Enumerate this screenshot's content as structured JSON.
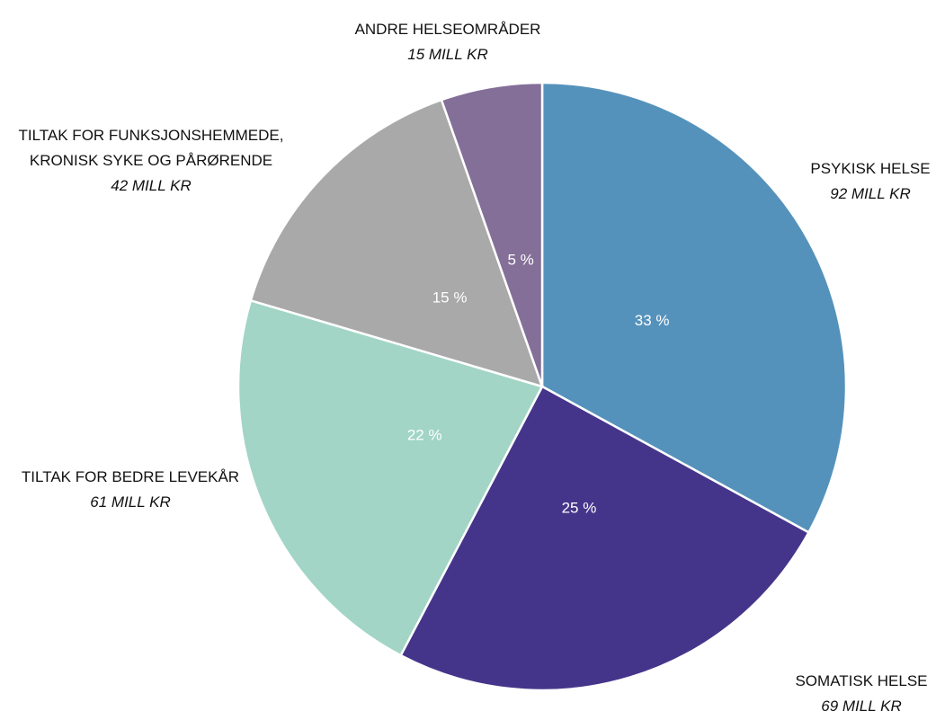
{
  "chart_data": {
    "type": "pie",
    "categories": [
      "PSYKISK HELSE",
      "SOMATISK HELSE",
      "TILTAK FOR BEDRE LEVEKÅR",
      "TILTAK FOR FUNKSJONSHEMMEDE, KRONISK SYKE OG PÅRØRENDE",
      "ANDRE HELSEOMRÅDER"
    ],
    "values": [
      92,
      69,
      61,
      42,
      15
    ],
    "value_labels": [
      "92 MILL KR",
      "69 MILL KR",
      "61 MILL KR",
      "42 MILL KR",
      "15 MILL KR"
    ],
    "share_labels": [
      "33 %",
      "25 %",
      "22 %",
      "15 %",
      "5 %"
    ],
    "colors": [
      "#5592bb",
      "#45358a",
      "#a2d5c6",
      "#a9a9a9",
      "#846f98"
    ]
  }
}
